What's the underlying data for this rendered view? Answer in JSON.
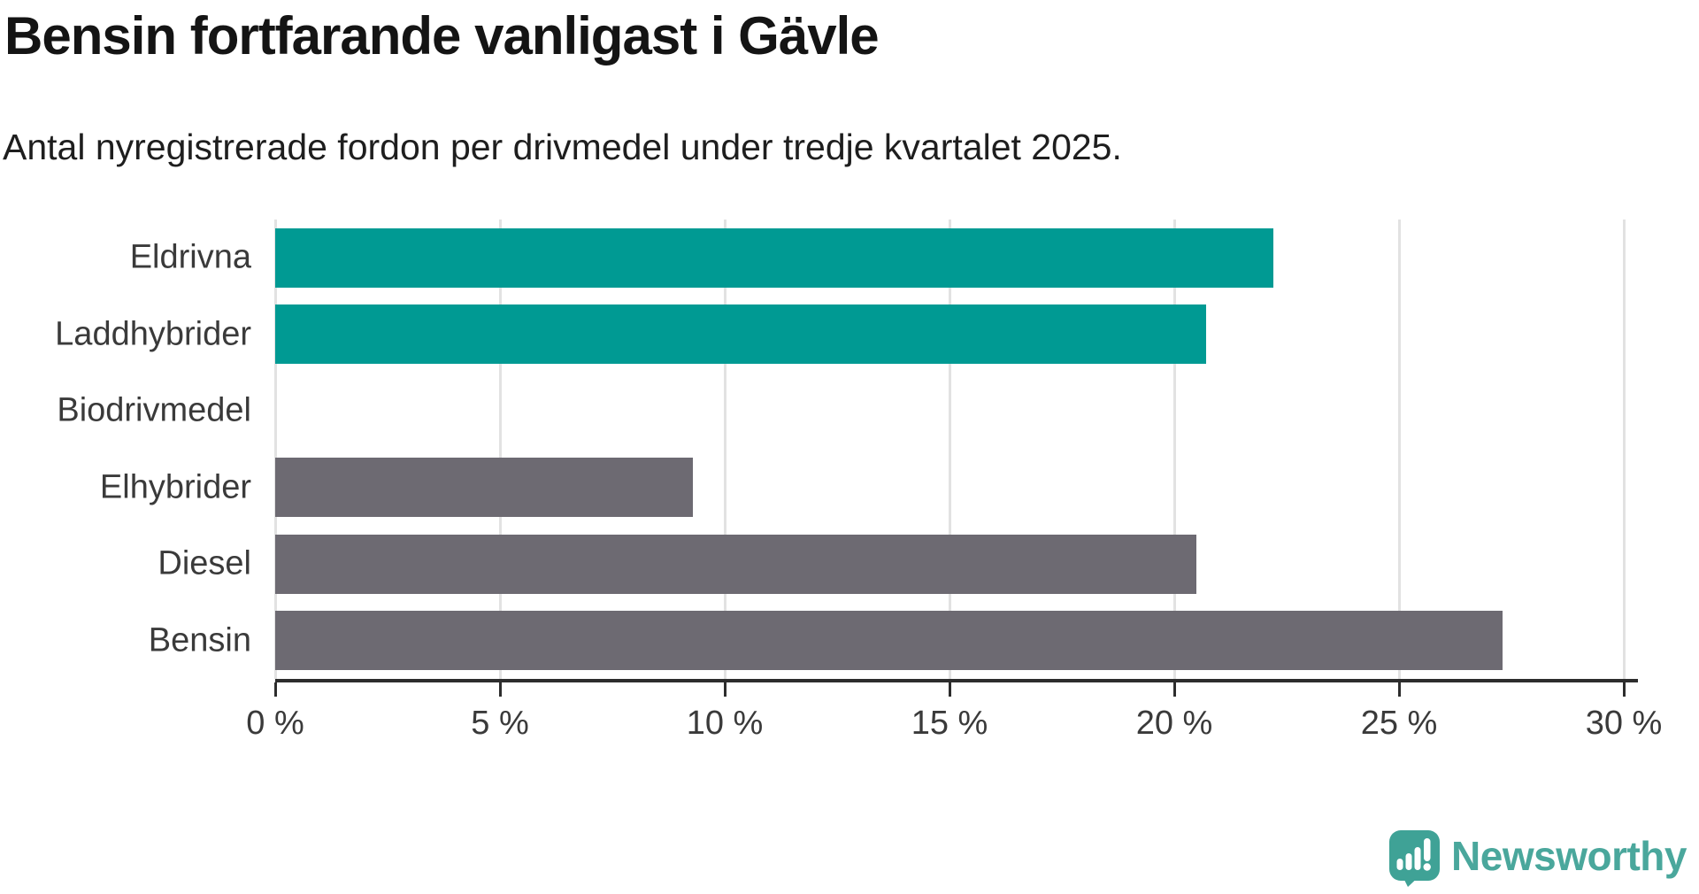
{
  "header": {
    "title": "Bensin fortfarande vanligast i Gävle",
    "subtitle": "Antal nyregistrerade fordon per drivmedel under tredje kvartalet 2025."
  },
  "chart_data": {
    "type": "bar",
    "orientation": "horizontal",
    "title": "Bensin fortfarande vanligast i Gävle",
    "subtitle": "Antal nyregistrerade fordon per drivmedel under tredje kvartalet 2025.",
    "categories": [
      "Eldrivna",
      "Laddhybrider",
      "Biodrivmedel",
      "Elhybrider",
      "Diesel",
      "Bensin"
    ],
    "values": [
      22.2,
      20.7,
      0,
      9.3,
      20.5,
      27.3
    ],
    "unit": "%",
    "bar_colors": [
      "#009a93",
      "#009a93",
      "#009a93",
      "#6d6a72",
      "#6d6a72",
      "#6d6a72"
    ],
    "highlight_color": "#009a93",
    "default_color": "#6d6a72",
    "xlim": [
      0,
      30
    ],
    "x_ticks": [
      0,
      5,
      10,
      15,
      20,
      25,
      30
    ],
    "x_tick_labels": [
      "0 %",
      "5 %",
      "10 %",
      "15 %",
      "20 %",
      "25 %",
      "30 %"
    ],
    "grid": true,
    "gridline_color": "#e2e2e2",
    "legend": false
  },
  "branding": {
    "logo_text": "Newsworthy",
    "logo_icon_color": "#3fa296",
    "logo_text_color": "#4aa79c"
  }
}
